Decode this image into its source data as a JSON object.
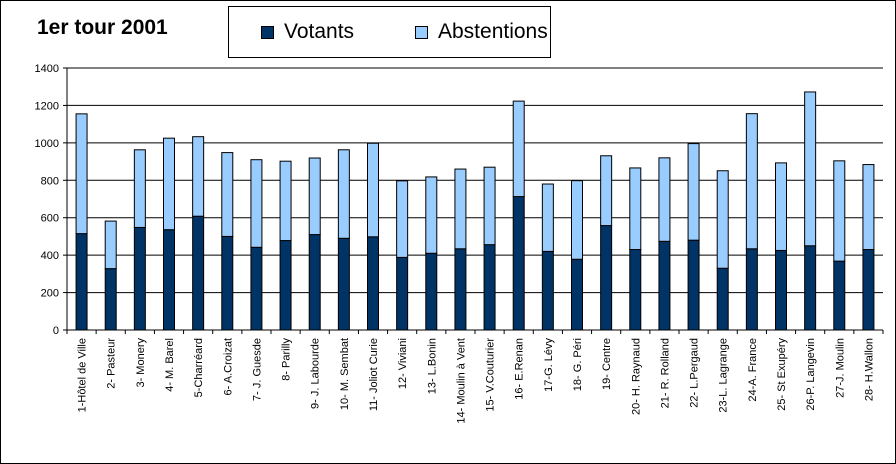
{
  "chart_data": {
    "type": "bar",
    "stacked": true,
    "title": "1er tour 2001",
    "xlabel": "",
    "ylabel": "",
    "ylim": [
      0,
      1400
    ],
    "yticks": [
      0,
      200,
      400,
      600,
      800,
      1000,
      1200,
      1400
    ],
    "grid": true,
    "legend_position": "top",
    "categories": [
      "1-Hôtel de Ville",
      "2- Pasteur",
      "3- Monery",
      "4- M. Barel",
      "5-Charréard",
      "6- A.Croizat",
      "7- J. Guesde",
      "8- Parilly",
      "9- J. Labourde",
      "10- M. Sembat",
      "11- Joliot Curie",
      "12- Viviani",
      "13- L.Bonin",
      "14- Moulin à Vent",
      "15- V.Couturier",
      "16- E.Renan",
      "17-G. Lévy",
      "18- G. Péri",
      "19- Centre",
      "20- H. Raynaud",
      "21- R. Rolland",
      "22- L.Pergaud",
      "23-L. Lagrange",
      "24-A. France",
      "25- St Exupéry",
      "26-P. Langevin",
      "27-J. Moulin",
      "28- H.Wallon"
    ],
    "series": [
      {
        "name": "Votants",
        "color": "#003366",
        "values": [
          515,
          328,
          548,
          536,
          608,
          500,
          442,
          478,
          510,
          490,
          498,
          388,
          410,
          434,
          456,
          713,
          420,
          378,
          558,
          430,
          474,
          480,
          330,
          434,
          425,
          450,
          368,
          430
        ]
      },
      {
        "name": "Abstentions",
        "color": "#99ccff",
        "values": [
          640,
          254,
          415,
          489,
          425,
          448,
          468,
          424,
          409,
          473,
          500,
          409,
          408,
          426,
          414,
          510,
          360,
          420,
          373,
          436,
          446,
          516,
          521,
          722,
          468,
          822,
          536,
          454
        ]
      }
    ]
  }
}
